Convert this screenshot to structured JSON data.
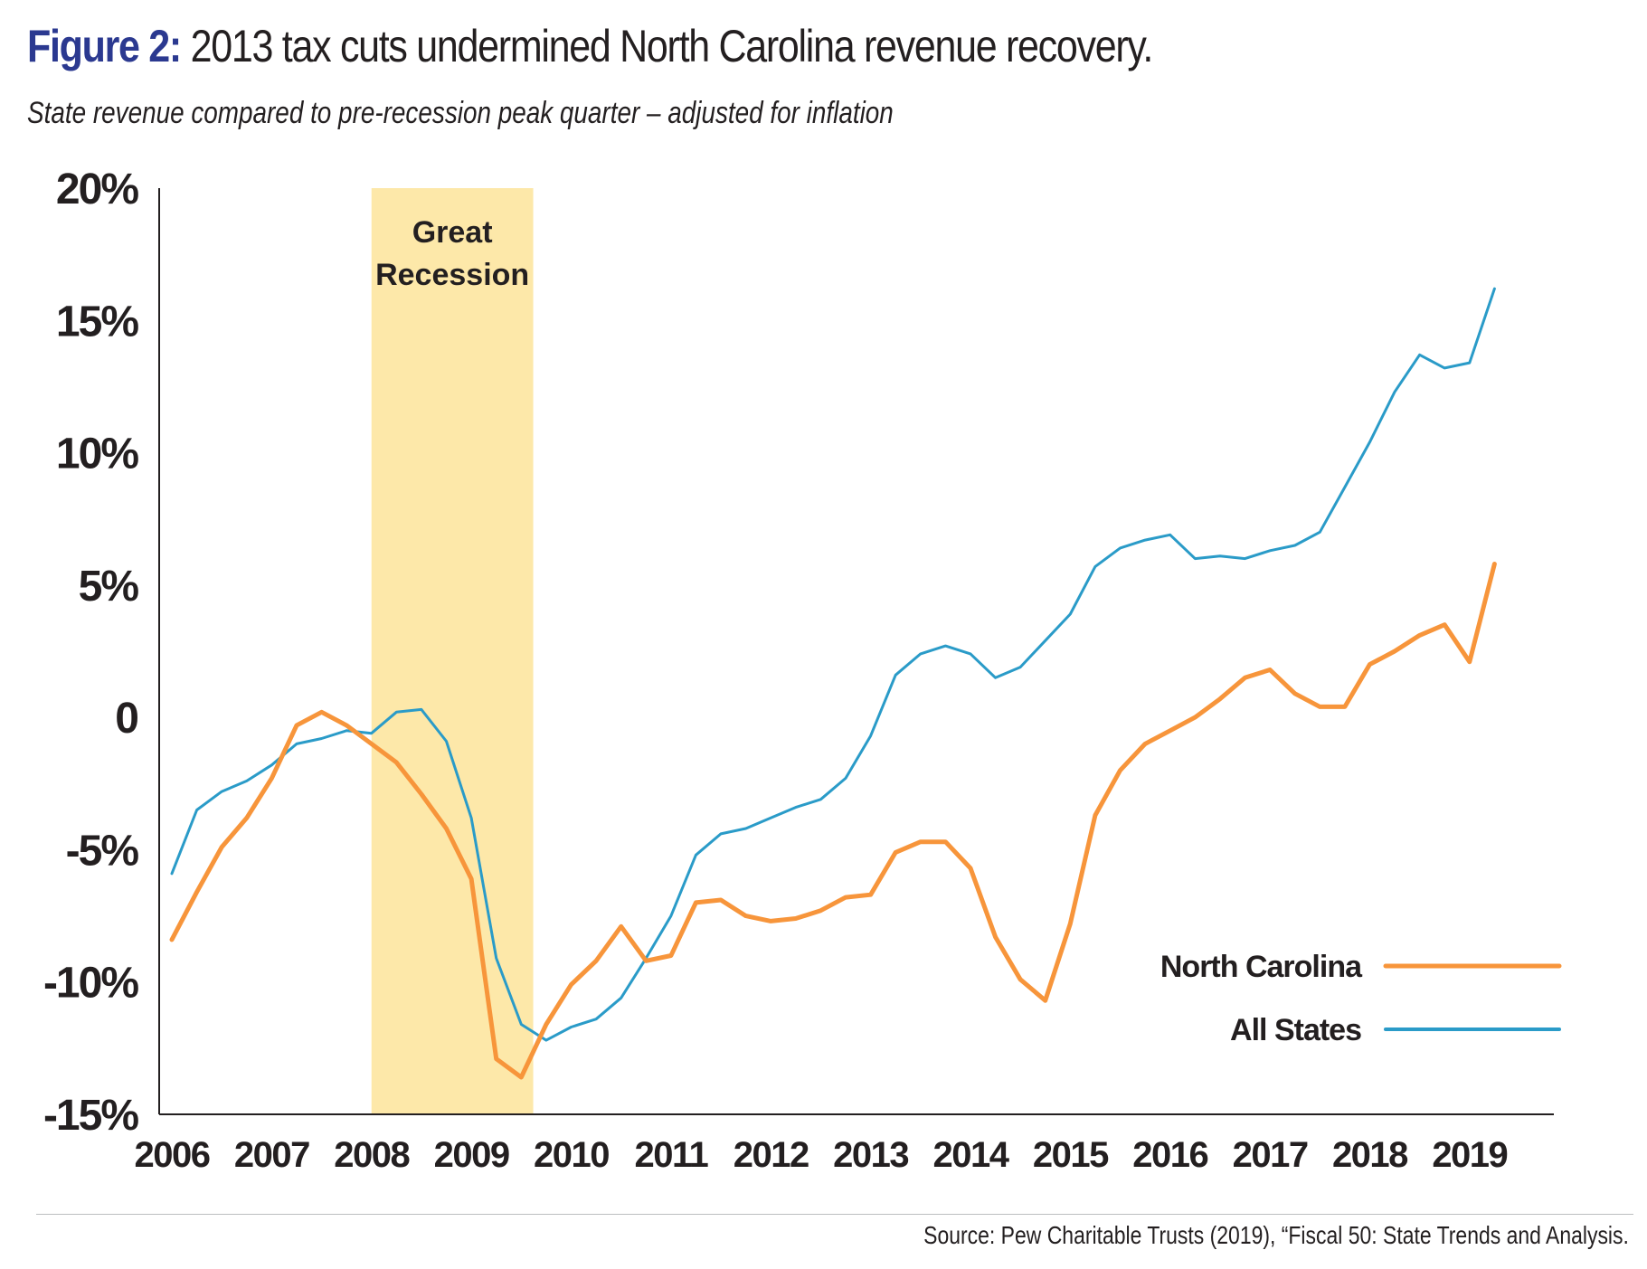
{
  "title": {
    "figure_label": "Figure 2:",
    "text": "2013 tax cuts undermined North Carolina revenue recovery."
  },
  "subtitle": "State revenue compared to pre-recession peak quarter – adjusted for inflation",
  "source": "Source: Pew Charitable Trusts (2019), “Fiscal 50: State Trends and Analysis.",
  "colors": {
    "north_carolina": "#f7953b",
    "all_states": "#2a9bc8",
    "recession": "#fde8a9",
    "title_accent": "#2b3990",
    "axis": "#231f20"
  },
  "chart_data": {
    "type": "line",
    "title": "2013 tax cuts undermined North Carolina revenue recovery.",
    "subtitle": "State revenue compared to pre-recession peak quarter – adjusted for inflation",
    "xlabel": "",
    "ylabel": "",
    "xlim": [
      2006,
      2019.5
    ],
    "ylim": [
      -15,
      20
    ],
    "y_ticks": [
      {
        "value": 20,
        "label": "20%"
      },
      {
        "value": 15,
        "label": "15%"
      },
      {
        "value": 10,
        "label": "10%"
      },
      {
        "value": 5,
        "label": "5%"
      },
      {
        "value": 0,
        "label": "0"
      },
      {
        "value": -5,
        "label": "-5%"
      },
      {
        "value": -10,
        "label": "-10%"
      },
      {
        "value": -15,
        "label": "-15%"
      }
    ],
    "x_ticks": [
      {
        "value": 2006,
        "label": "2006"
      },
      {
        "value": 2007,
        "label": "2007"
      },
      {
        "value": 2008,
        "label": "2008"
      },
      {
        "value": 2009,
        "label": "2009"
      },
      {
        "value": 2010,
        "label": "2010"
      },
      {
        "value": 2011,
        "label": "2011"
      },
      {
        "value": 2012,
        "label": "2012"
      },
      {
        "value": 2013,
        "label": "2013"
      },
      {
        "value": 2014,
        "label": "2014"
      },
      {
        "value": 2015,
        "label": "2015"
      },
      {
        "value": 2016,
        "label": "2016"
      },
      {
        "value": 2017,
        "label": "2017"
      },
      {
        "value": 2018,
        "label": "2018"
      },
      {
        "value": 2019,
        "label": "2019"
      }
    ],
    "annotation": {
      "label": "Great Recession",
      "x_start": 2008,
      "x_end": 2009.62
    },
    "grid": false,
    "legend_position": "bottom-right",
    "x": [
      2006.0,
      2006.25,
      2006.5,
      2006.75,
      2007.0,
      2007.25,
      2007.5,
      2007.75,
      2008.0,
      2008.25,
      2008.5,
      2008.75,
      2009.0,
      2009.25,
      2009.5,
      2009.75,
      2010.0,
      2010.25,
      2010.5,
      2010.75,
      2011.0,
      2011.25,
      2011.5,
      2011.75,
      2012.0,
      2012.25,
      2012.5,
      2012.75,
      2013.0,
      2013.25,
      2013.5,
      2013.75,
      2014.0,
      2014.25,
      2014.5,
      2014.75,
      2015.0,
      2015.25,
      2015.5,
      2015.75,
      2016.0,
      2016.25,
      2016.5,
      2016.75,
      2017.0,
      2017.25,
      2017.5,
      2017.75,
      2018.0,
      2018.25,
      2018.5,
      2018.75,
      2019.0,
      2019.25
    ],
    "series": [
      {
        "name": "North Carolina",
        "color": "#f7953b",
        "values": [
          -8.4,
          -6.6,
          -4.9,
          -3.8,
          -2.3,
          -0.3,
          0.2,
          -0.3,
          -1.0,
          -1.7,
          -2.9,
          -4.2,
          -6.1,
          -12.9,
          -13.6,
          -11.6,
          -10.1,
          -9.2,
          -7.9,
          -9.2,
          -9.0,
          -7.0,
          -6.9,
          -7.5,
          -7.7,
          -7.6,
          -7.3,
          -6.8,
          -6.7,
          -5.1,
          -4.7,
          -4.7,
          -5.7,
          -8.3,
          -9.9,
          -10.7,
          -7.8,
          -3.7,
          -2.0,
          -1.0,
          -0.5,
          0.0,
          0.7,
          1.5,
          1.8,
          0.9,
          0.4,
          0.4,
          2.0,
          2.5,
          3.1,
          3.5,
          2.1,
          5.8
        ]
      },
      {
        "name": "All States",
        "color": "#2a9bc8",
        "values": [
          -5.9,
          -3.5,
          -2.8,
          -2.4,
          -1.8,
          -1.0,
          -0.8,
          -0.5,
          -0.6,
          0.2,
          0.3,
          -0.9,
          -3.8,
          -9.1,
          -11.6,
          -12.2,
          -11.7,
          -11.4,
          -10.6,
          -9.1,
          -7.5,
          -5.2,
          -4.4,
          -4.2,
          -3.8,
          -3.4,
          -3.1,
          -2.3,
          -0.7,
          1.6,
          2.4,
          2.7,
          2.4,
          1.5,
          1.9,
          2.9,
          3.9,
          5.7,
          6.4,
          6.7,
          6.9,
          6.0,
          6.1,
          6.0,
          6.3,
          6.5,
          7.0,
          8.7,
          10.4,
          12.3,
          13.7,
          13.2,
          13.4,
          16.2
        ]
      }
    ]
  }
}
